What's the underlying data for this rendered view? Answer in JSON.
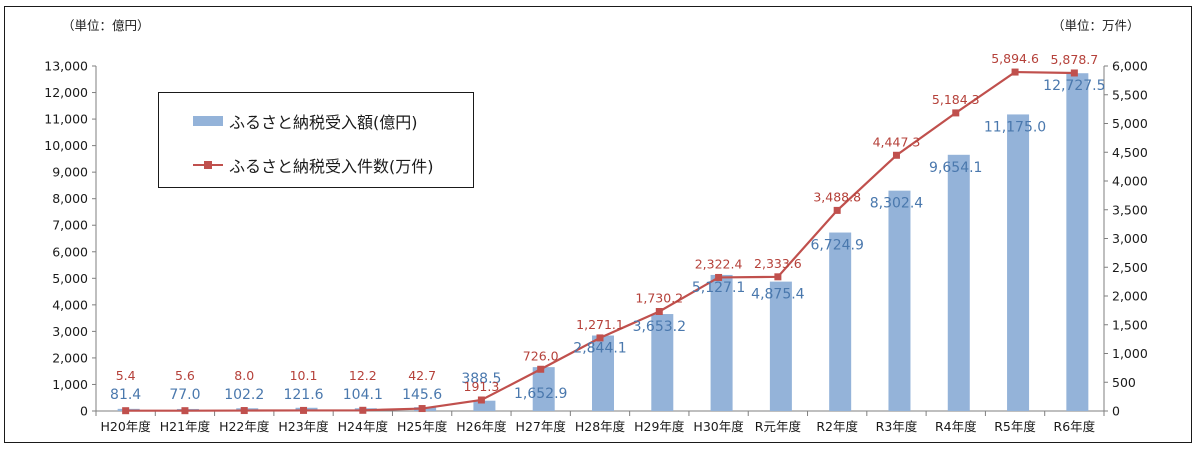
{
  "chart_data": {
    "type": "bar+line",
    "left_unit": "（単位：億円）",
    "right_unit": "（単位：万件）",
    "categories": [
      "H20年度",
      "H21年度",
      "H22年度",
      "H23年度",
      "H24年度",
      "H25年度",
      "H26年度",
      "H27年度",
      "H28年度",
      "H29年度",
      "H30年度",
      "R元年度",
      "R2年度",
      "R3年度",
      "R4年度",
      "R5年度",
      "R6年度"
    ],
    "left_axis": {
      "min": 0,
      "max": 13000,
      "step": 1000,
      "ticks": [
        "0",
        "1,000",
        "2,000",
        "3,000",
        "4,000",
        "5,000",
        "6,000",
        "7,000",
        "8,000",
        "9,000",
        "10,000",
        "11,000",
        "12,000",
        "13,000"
      ]
    },
    "right_axis": {
      "min": 0,
      "max": 6000,
      "step": 500,
      "ticks": [
        "0",
        "500",
        "1,000",
        "1,500",
        "2,000",
        "2,500",
        "3,000",
        "3,500",
        "4,000",
        "4,500",
        "5,000",
        "5,500",
        "6,000"
      ]
    },
    "series": [
      {
        "name": "ふるさと納税受入額(億円)",
        "type": "bar",
        "axis": "left",
        "color": "#94b3d9",
        "values": [
          81.4,
          77.0,
          102.2,
          121.6,
          104.1,
          145.6,
          388.5,
          1652.9,
          2844.1,
          3653.2,
          5127.1,
          4875.4,
          6724.9,
          8302.4,
          9654.1,
          11175.0,
          12727.5
        ],
        "labels": [
          "81.4",
          "77.0",
          "102.2",
          "121.6",
          "104.1",
          "145.6",
          "388.5",
          "1,652.9",
          "2,844.1",
          "3,653.2",
          "5,127.1",
          "4,875.4",
          "6,724.9",
          "8,302.4",
          "9,654.1",
          "11,175.0",
          "12,727.5"
        ]
      },
      {
        "name": "ふるさと納税受入件数(万件)",
        "type": "line",
        "axis": "right",
        "color": "#c0504d",
        "values": [
          5.4,
          5.6,
          8.0,
          10.1,
          12.2,
          42.7,
          191.3,
          726.0,
          1271.1,
          1730.2,
          2322.4,
          2333.6,
          3488.8,
          4447.3,
          5184.3,
          5894.6,
          5878.7
        ],
        "labels": [
          "5.4",
          "5.6",
          "8.0",
          "10.1",
          "12.2",
          "42.7",
          "191.3",
          "726.0",
          "1,271.1",
          "1,730.2",
          "2,322.4",
          "2,333.6",
          "3,488.8",
          "4,447.3",
          "5,184.3",
          "5,894.6",
          "5,878.7"
        ]
      }
    ],
    "legend": {
      "position": "top-left",
      "bar_label": "ふるさと納税受入額(億円)",
      "line_label": "ふるさと納税受入件数(万件)"
    }
  }
}
